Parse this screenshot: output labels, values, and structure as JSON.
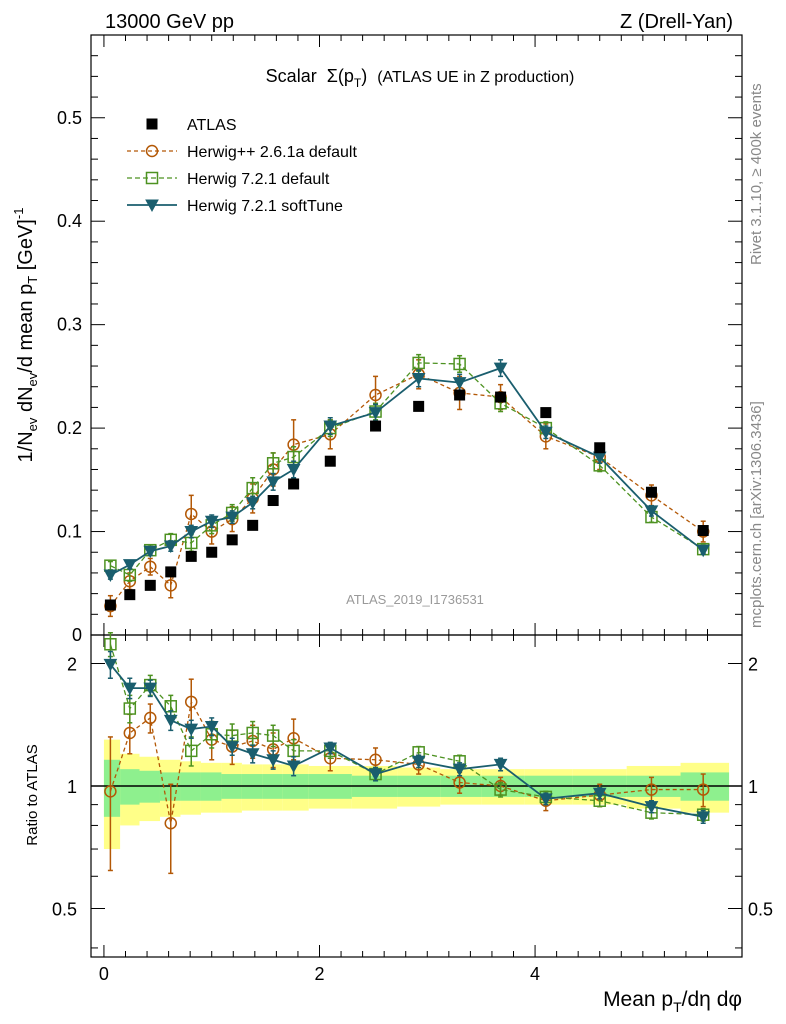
{
  "header": {
    "left": "13000 GeV pp",
    "right": "Z (Drell-Yan)"
  },
  "side_labels": {
    "rivet": "Rivet 3.1.10, ≥ 400k events",
    "mcplots": "mcplots.cern.ch [arXiv:1306.3436]"
  },
  "chart_data": {
    "type": "scatter",
    "title": "Scalar Σ(p_T) (ATLAS UE in Z production)",
    "title_main": "Scalar",
    "title_sigma": "Σ(p",
    "title_sub": "T",
    "title_close": ")",
    "title_rest": "(ATLAS UE in Z production)",
    "analysis_id": "ATLAS_2019_I1736531",
    "xlabel": "Mean p_T/dη dφ",
    "xlabel_parts": {
      "main": "Mean p",
      "sub": "T",
      "rest": "/dη dφ"
    },
    "ylabel": "1/N_ev dN_ev/d mean p_T [GeV]^-1",
    "ylabel_parts": {
      "a": "1/N",
      "ev1": "ev",
      "b": " dN",
      "ev2": "ev",
      "c": "/d mean p",
      "t": "T",
      "d": " [GeV]",
      "sup": "-1"
    },
    "ratio_ylabel": "Ratio to ATLAS",
    "xlim": [
      -0.12,
      5.92
    ],
    "ylim": [
      0,
      0.58
    ],
    "ratio_ylim": [
      0.38,
      2.35
    ],
    "x_ticks": [
      0,
      2,
      4
    ],
    "x_tick_labels": [
      "0",
      "2",
      "4"
    ],
    "y_ticks": [
      0.1,
      0.2,
      0.3,
      0.4,
      0.5
    ],
    "y_tick_labels": [
      "0.1",
      "0.2",
      "0.3",
      "0.4",
      "0.5"
    ],
    "y_zero_label": "0",
    "ratio_ticks": [
      0.5,
      1,
      2
    ],
    "ratio_tick_labels": [
      "0.5",
      "1",
      "2"
    ],
    "x": [
      0.06,
      0.24,
      0.43,
      0.62,
      0.81,
      1.0,
      1.19,
      1.38,
      1.57,
      1.76,
      2.1,
      2.52,
      2.92,
      3.3,
      3.68,
      4.1,
      4.6,
      5.08,
      5.56
    ],
    "band_edges": [
      0.0,
      0.15,
      0.33,
      0.52,
      0.71,
      0.9,
      1.09,
      1.28,
      1.47,
      1.66,
      1.9,
      2.3,
      2.72,
      3.12,
      3.5,
      3.9,
      4.35,
      4.85,
      5.35,
      5.8
    ],
    "band_inner": [
      0.16,
      0.1,
      0.09,
      0.08,
      0.08,
      0.08,
      0.07,
      0.07,
      0.07,
      0.07,
      0.07,
      0.06,
      0.06,
      0.06,
      0.06,
      0.06,
      0.06,
      0.06,
      0.08
    ],
    "band_outer": [
      0.3,
      0.2,
      0.18,
      0.16,
      0.15,
      0.14,
      0.14,
      0.13,
      0.13,
      0.13,
      0.12,
      0.12,
      0.11,
      0.1,
      0.1,
      0.1,
      0.1,
      0.12,
      0.14
    ],
    "series": [
      {
        "name": "ATLAS",
        "style": "data",
        "color": "#000000",
        "values": [
          0.029,
          0.039,
          0.048,
          0.061,
          0.076,
          0.08,
          0.092,
          0.106,
          0.13,
          0.146,
          0.168,
          0.202,
          0.221,
          0.232,
          0.23,
          0.215,
          0.181,
          0.138,
          0.101
        ],
        "errors": [
          0.002,
          0.002,
          0.002,
          0.002,
          0.002,
          0.002,
          0.002,
          0.002,
          0.002,
          0.002,
          0.002,
          0.002,
          0.002,
          0.002,
          0.002,
          0.002,
          0.002,
          0.002,
          0.002
        ]
      },
      {
        "name": "Herwig++ 2.6.1a default",
        "style": "circle",
        "color": "#b35806",
        "values": [
          0.028,
          0.052,
          0.066,
          0.048,
          0.117,
          0.1,
          0.112,
          0.132,
          0.16,
          0.184,
          0.194,
          0.232,
          0.252,
          0.234,
          0.23,
          0.192,
          0.172,
          0.135,
          0.1
        ],
        "errors": [
          0.01,
          0.008,
          0.008,
          0.012,
          0.018,
          0.012,
          0.012,
          0.014,
          0.016,
          0.024,
          0.014,
          0.018,
          0.014,
          0.016,
          0.012,
          0.012,
          0.012,
          0.01,
          0.01
        ],
        "ratio_errors": [
          0.35,
          0.15,
          0.12,
          0.2,
          0.22,
          0.14,
          0.12,
          0.12,
          0.12,
          0.15,
          0.08,
          0.08,
          0.06,
          0.06,
          0.05,
          0.05,
          0.06,
          0.07,
          0.09
        ]
      },
      {
        "name": "Herwig 7.2.1 default",
        "style": "square",
        "color": "#4d9221",
        "values": [
          0.067,
          0.058,
          0.082,
          0.092,
          0.089,
          0.106,
          0.118,
          0.142,
          0.166,
          0.172,
          0.2,
          0.216,
          0.263,
          0.262,
          0.224,
          0.2,
          0.164,
          0.114,
          0.083
        ],
        "errors": [
          0.004,
          0.006,
          0.005,
          0.006,
          0.008,
          0.008,
          0.008,
          0.01,
          0.01,
          0.01,
          0.008,
          0.008,
          0.008,
          0.008,
          0.008,
          0.006,
          0.006,
          0.005,
          0.004
        ],
        "ratio_errors": [
          0.15,
          0.12,
          0.1,
          0.1,
          0.1,
          0.1,
          0.09,
          0.09,
          0.08,
          0.08,
          0.05,
          0.04,
          0.04,
          0.04,
          0.04,
          0.03,
          0.03,
          0.03,
          0.03
        ]
      },
      {
        "name": "Herwig 7.2.1 softTune",
        "style": "triangle",
        "color": "#1a5e6e",
        "values": [
          0.058,
          0.068,
          0.081,
          0.086,
          0.1,
          0.11,
          0.114,
          0.128,
          0.148,
          0.16,
          0.202,
          0.215,
          0.248,
          0.244,
          0.258,
          0.196,
          0.172,
          0.12,
          0.082
        ],
        "errors": [
          0.004,
          0.004,
          0.004,
          0.005,
          0.006,
          0.006,
          0.006,
          0.006,
          0.008,
          0.008,
          0.008,
          0.008,
          0.008,
          0.008,
          0.008,
          0.006,
          0.006,
          0.005,
          0.004
        ],
        "ratio_errors": [
          0.15,
          0.1,
          0.08,
          0.08,
          0.07,
          0.07,
          0.06,
          0.06,
          0.06,
          0.06,
          0.04,
          0.04,
          0.04,
          0.04,
          0.04,
          0.03,
          0.03,
          0.03,
          0.03
        ]
      }
    ],
    "ratios": {
      "Herwig++ 2.6.1a default": [
        0.97,
        1.35,
        1.47,
        0.81,
        1.61,
        1.3,
        1.25,
        1.29,
        1.23,
        1.31,
        1.17,
        1.16,
        1.13,
        1.02,
        1.0,
        0.92,
        0.95,
        0.98,
        0.98
      ],
      "Herwig 7.2.1 default": [
        2.23,
        1.55,
        1.77,
        1.57,
        1.22,
        1.34,
        1.33,
        1.35,
        1.33,
        1.22,
        1.22,
        1.07,
        1.21,
        1.15,
        0.98,
        0.94,
        0.92,
        0.86,
        0.85
      ],
      "Herwig 7.2.1 softTune": [
        1.99,
        1.74,
        1.74,
        1.45,
        1.38,
        1.4,
        1.25,
        1.2,
        1.16,
        1.12,
        1.24,
        1.07,
        1.15,
        1.1,
        1.13,
        0.93,
        0.96,
        0.89,
        0.84
      ]
    },
    "legend": [
      "ATLAS",
      "Herwig++ 2.6.1a default",
      "Herwig 7.2.1 default",
      "Herwig 7.2.1 softTune"
    ],
    "legend_position": "top-left",
    "grid": false
  }
}
